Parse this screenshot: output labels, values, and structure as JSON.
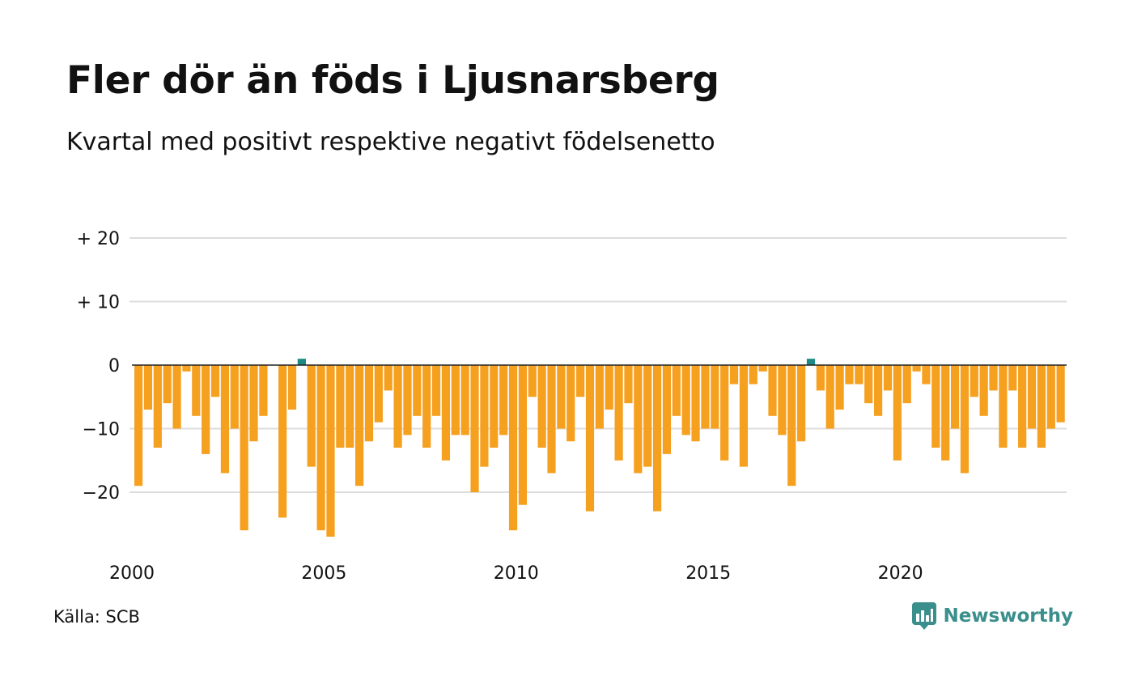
{
  "title": "Fler dör än föds i Ljusnarsberg",
  "subtitle": "Kvartal med positivt respektive negativt födelsenetto",
  "source": "Källa: SCB",
  "brand": {
    "name": "Newsworthy",
    "icon": "newsworthy-logo-icon",
    "color": "#3a8f8c"
  },
  "colors": {
    "negative": "#f6a01f",
    "positive": "#1c8a83",
    "grid": "#dddddd",
    "zero": "#222222"
  },
  "chart_data": {
    "type": "bar",
    "start": "2000 Q1",
    "frequency": "quarterly",
    "y_ticks": [
      {
        "value": 20,
        "label": "+ 20"
      },
      {
        "value": 10,
        "label": "+ 10"
      },
      {
        "value": 0,
        "label": "0"
      },
      {
        "value": -10,
        "label": "−10"
      },
      {
        "value": -20,
        "label": "−20"
      }
    ],
    "x_ticks": [
      {
        "label": "2000",
        "year": 2000
      },
      {
        "label": "2005",
        "year": 2005
      },
      {
        "label": "2010",
        "year": 2010
      },
      {
        "label": "2015",
        "year": 2015
      },
      {
        "label": "2020",
        "year": 2020
      }
    ],
    "ylim": [
      -29,
      22
    ],
    "grid": true,
    "values": [
      -19,
      -7,
      -13,
      -6,
      -10,
      -1,
      -8,
      -14,
      -5,
      -17,
      -10,
      -26,
      -12,
      -8,
      0,
      -24,
      -7,
      1,
      -16,
      -26,
      -27,
      -13,
      -13,
      -19,
      -12,
      -9,
      -4,
      -13,
      -11,
      -8,
      -13,
      -8,
      -15,
      -11,
      -11,
      -20,
      -16,
      -13,
      -11,
      -26,
      -22,
      -5,
      -13,
      -17,
      -10,
      -12,
      -5,
      -23,
      -10,
      -7,
      -15,
      -6,
      -17,
      -16,
      -23,
      -14,
      -8,
      -11,
      -12,
      -10,
      -10,
      -15,
      -3,
      -16,
      -3,
      -1,
      -8,
      -11,
      -19,
      -12,
      1,
      -4,
      -10,
      -7,
      -3,
      -3,
      -6,
      -8,
      -4,
      -15,
      -6,
      -1,
      -3,
      -13,
      -15,
      -10,
      -17,
      -5,
      -8,
      -4,
      -13,
      -4,
      -13,
      -10,
      -13,
      -10,
      -9
    ]
  }
}
